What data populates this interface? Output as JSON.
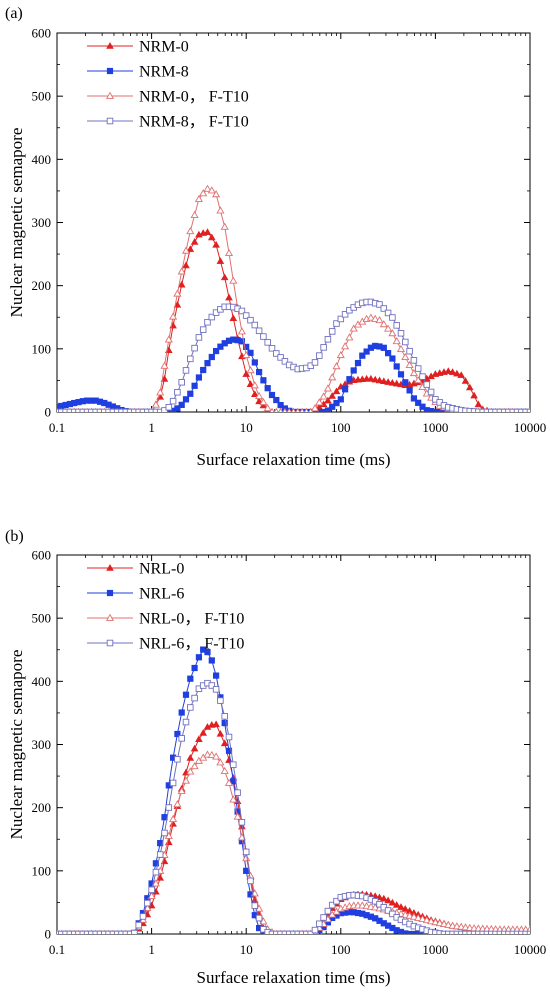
{
  "chart_data": [
    {
      "type": "line",
      "panel_label": "(a)",
      "xlabel": "Surface relaxation time (ms)",
      "ylabel": "Nuclear magnetic semapore",
      "xscale": "log",
      "xlim": [
        0.1,
        10000
      ],
      "ylim": [
        0,
        600
      ],
      "xticks": [
        "0.1",
        "1",
        "10",
        "100",
        "1000",
        "10000"
      ],
      "yticks": [
        "0",
        "100",
        "200",
        "300",
        "400",
        "500",
        "600"
      ],
      "grid": false,
      "legend": "top-left",
      "series": [
        {
          "name": "NRM-0",
          "color": "#e02020",
          "marker": "triangle-filled",
          "points": [
            [
              0.1,
              0
            ],
            [
              1,
              0
            ],
            [
              1.3,
              30
            ],
            [
              1.6,
              120
            ],
            [
              2,
              190
            ],
            [
              2.5,
              255
            ],
            [
              3.2,
              282
            ],
            [
              4,
              285
            ],
            [
              4.8,
              265
            ],
            [
              6,
              210
            ],
            [
              8,
              120
            ],
            [
              10,
              60
            ],
            [
              13,
              20
            ],
            [
              18,
              0
            ],
            [
              50,
              0
            ],
            [
              70,
              15
            ],
            [
              100,
              40
            ],
            [
              130,
              50
            ],
            [
              200,
              53
            ],
            [
              300,
              48
            ],
            [
              500,
              42
            ],
            [
              700,
              48
            ],
            [
              1000,
              60
            ],
            [
              1400,
              65
            ],
            [
              1900,
              58
            ],
            [
              2400,
              35
            ],
            [
              3000,
              5
            ],
            [
              4000,
              0
            ],
            [
              10000,
              0
            ]
          ]
        },
        {
          "name": "NRM-8",
          "color": "#1f3fe0",
          "marker": "square-filled",
          "points": [
            [
              0.1,
              8
            ],
            [
              0.15,
              14
            ],
            [
              0.2,
              18
            ],
            [
              0.26,
              18
            ],
            [
              0.32,
              14
            ],
            [
              0.4,
              8
            ],
            [
              0.5,
              2
            ],
            [
              0.6,
              0
            ],
            [
              1.6,
              0
            ],
            [
              2,
              8
            ],
            [
              2.6,
              30
            ],
            [
              3.3,
              60
            ],
            [
              4,
              80
            ],
            [
              5,
              100
            ],
            [
              6.3,
              112
            ],
            [
              7.5,
              115
            ],
            [
              9,
              112
            ],
            [
              11,
              95
            ],
            [
              14,
              60
            ],
            [
              18,
              30
            ],
            [
              24,
              8
            ],
            [
              30,
              0
            ],
            [
              70,
              0
            ],
            [
              100,
              20
            ],
            [
              130,
              60
            ],
            [
              170,
              90
            ],
            [
              220,
              105
            ],
            [
              280,
              103
            ],
            [
              350,
              85
            ],
            [
              450,
              55
            ],
            [
              600,
              20
            ],
            [
              800,
              3
            ],
            [
              1000,
              0
            ],
            [
              10000,
              0
            ]
          ]
        },
        {
          "name": "NRM-0， F-T10",
          "color": "#e07070",
          "marker": "triangle-open",
          "points": [
            [
              0.1,
              0
            ],
            [
              1,
              0
            ],
            [
              1.2,
              20
            ],
            [
              1.5,
              110
            ],
            [
              2,
              210
            ],
            [
              2.5,
              280
            ],
            [
              3.2,
              340
            ],
            [
              4,
              355
            ],
            [
              4.8,
              345
            ],
            [
              6,
              290
            ],
            [
              8,
              170
            ],
            [
              10,
              90
            ],
            [
              13,
              30
            ],
            [
              18,
              0
            ],
            [
              50,
              0
            ],
            [
              70,
              30
            ],
            [
              100,
              90
            ],
            [
              140,
              135
            ],
            [
              200,
              150
            ],
            [
              260,
              145
            ],
            [
              350,
              125
            ],
            [
              450,
              95
            ],
            [
              600,
              60
            ],
            [
              800,
              30
            ],
            [
              1100,
              10
            ],
            [
              1500,
              3
            ],
            [
              2000,
              0
            ],
            [
              10000,
              0
            ]
          ]
        },
        {
          "name": "NRM-8， F-T10",
          "color": "#7070c0",
          "marker": "square-open",
          "points": [
            [
              0.1,
              0
            ],
            [
              1.3,
              0
            ],
            [
              1.6,
              10
            ],
            [
              2,
              40
            ],
            [
              2.5,
              80
            ],
            [
              3.2,
              120
            ],
            [
              4,
              145
            ],
            [
              5,
              160
            ],
            [
              6,
              167
            ],
            [
              7.5,
              166
            ],
            [
              9,
              160
            ],
            [
              12,
              140
            ],
            [
              16,
              115
            ],
            [
              20,
              95
            ],
            [
              28,
              75
            ],
            [
              35,
              68
            ],
            [
              45,
              70
            ],
            [
              55,
              80
            ],
            [
              70,
              110
            ],
            [
              90,
              140
            ],
            [
              120,
              160
            ],
            [
              160,
              172
            ],
            [
              200,
              175
            ],
            [
              260,
              170
            ],
            [
              350,
              150
            ],
            [
              450,
              120
            ],
            [
              600,
              80
            ],
            [
              800,
              45
            ],
            [
              1000,
              20
            ],
            [
              1300,
              8
            ],
            [
              2000,
              2
            ],
            [
              3000,
              0
            ],
            [
              10000,
              0
            ]
          ]
        }
      ]
    },
    {
      "type": "line",
      "panel_label": "(b)",
      "xlabel": "Surface relaxation time (ms)",
      "ylabel": "Nuclear magnetic semapore",
      "xscale": "log",
      "xlim": [
        0.1,
        10000
      ],
      "ylim": [
        0,
        600
      ],
      "xticks": [
        "0.1",
        "1",
        "10",
        "100",
        "1000",
        "10000"
      ],
      "yticks": [
        "0",
        "100",
        "200",
        "300",
        "400",
        "500",
        "600"
      ],
      "grid": false,
      "legend": "top-left",
      "series": [
        {
          "name": "NRL-0",
          "color": "#e02020",
          "marker": "triangle-filled",
          "points": [
            [
              0.1,
              0
            ],
            [
              0.65,
              0
            ],
            [
              0.8,
              15
            ],
            [
              1,
              45
            ],
            [
              1.3,
              100
            ],
            [
              1.6,
              160
            ],
            [
              2,
              220
            ],
            [
              2.5,
              275
            ],
            [
              3.2,
              310
            ],
            [
              4,
              330
            ],
            [
              4.8,
              332
            ],
            [
              6,
              300
            ],
            [
              7.5,
              240
            ],
            [
              9.5,
              150
            ],
            [
              12,
              60
            ],
            [
              15,
              10
            ],
            [
              18,
              0
            ],
            [
              50,
              0
            ],
            [
              65,
              20
            ],
            [
              80,
              40
            ],
            [
              100,
              55
            ],
            [
              130,
              62
            ],
            [
              170,
              63
            ],
            [
              230,
              60
            ],
            [
              300,
              55
            ],
            [
              400,
              45
            ],
            [
              600,
              33
            ],
            [
              900,
              22
            ],
            [
              1500,
              13
            ],
            [
              2500,
              8
            ],
            [
              5000,
              5
            ],
            [
              10000,
              5
            ]
          ]
        },
        {
          "name": "NRL-6",
          "color": "#1f3fe0",
          "marker": "square-filled",
          "points": [
            [
              0.1,
              0
            ],
            [
              0.65,
              0
            ],
            [
              0.8,
              30
            ],
            [
              1,
              80
            ],
            [
              1.3,
              160
            ],
            [
              1.6,
              260
            ],
            [
              2,
              340
            ],
            [
              2.5,
              400
            ],
            [
              3.2,
              440
            ],
            [
              3.6,
              453
            ],
            [
              4.2,
              440
            ],
            [
              5,
              400
            ],
            [
              6.3,
              310
            ],
            [
              8,
              200
            ],
            [
              10,
              100
            ],
            [
              12,
              35
            ],
            [
              14,
              5
            ],
            [
              16,
              0
            ],
            [
              50,
              0
            ],
            [
              65,
              10
            ],
            [
              80,
              25
            ],
            [
              100,
              33
            ],
            [
              130,
              35
            ],
            [
              170,
              32
            ],
            [
              230,
              25
            ],
            [
              300,
              15
            ],
            [
              400,
              5
            ],
            [
              500,
              0
            ],
            [
              10000,
              0
            ]
          ]
        },
        {
          "name": "NRL-0， F-T10",
          "color": "#e07070",
          "marker": "triangle-open",
          "points": [
            [
              0.1,
              0
            ],
            [
              0.65,
              0
            ],
            [
              0.8,
              20
            ],
            [
              1,
              60
            ],
            [
              1.3,
              110
            ],
            [
              1.6,
              170
            ],
            [
              2,
              220
            ],
            [
              2.5,
              255
            ],
            [
              3.2,
              275
            ],
            [
              4,
              285
            ],
            [
              5,
              280
            ],
            [
              6.3,
              250
            ],
            [
              8,
              190
            ],
            [
              10,
              120
            ],
            [
              13,
              50
            ],
            [
              16,
              10
            ],
            [
              20,
              0
            ],
            [
              50,
              0
            ],
            [
              65,
              15
            ],
            [
              80,
              30
            ],
            [
              100,
              40
            ],
            [
              130,
              45
            ],
            [
              170,
              45
            ],
            [
              230,
              42
            ],
            [
              300,
              38
            ],
            [
              400,
              33
            ],
            [
              600,
              27
            ],
            [
              900,
              20
            ],
            [
              1500,
              13
            ],
            [
              2500,
              9
            ],
            [
              5000,
              7
            ],
            [
              10000,
              7
            ]
          ]
        },
        {
          "name": "NRL-6， F-T10",
          "color": "#7070c0",
          "marker": "square-open",
          "points": [
            [
              0.1,
              0
            ],
            [
              0.65,
              0
            ],
            [
              0.8,
              25
            ],
            [
              1,
              70
            ],
            [
              1.3,
              140
            ],
            [
              1.6,
              220
            ],
            [
              2,
              300
            ],
            [
              2.5,
              355
            ],
            [
              3.2,
              390
            ],
            [
              4,
              398
            ],
            [
              5,
              385
            ],
            [
              6.3,
              330
            ],
            [
              8,
              230
            ],
            [
              10,
              130
            ],
            [
              12,
              50
            ],
            [
              15,
              8
            ],
            [
              18,
              0
            ],
            [
              50,
              0
            ],
            [
              65,
              25
            ],
            [
              80,
              45
            ],
            [
              100,
              58
            ],
            [
              130,
              62
            ],
            [
              170,
              60
            ],
            [
              230,
              52
            ],
            [
              300,
              40
            ],
            [
              400,
              25
            ],
            [
              600,
              12
            ],
            [
              900,
              3
            ],
            [
              1200,
              0
            ],
            [
              10000,
              0
            ]
          ]
        }
      ]
    }
  ]
}
